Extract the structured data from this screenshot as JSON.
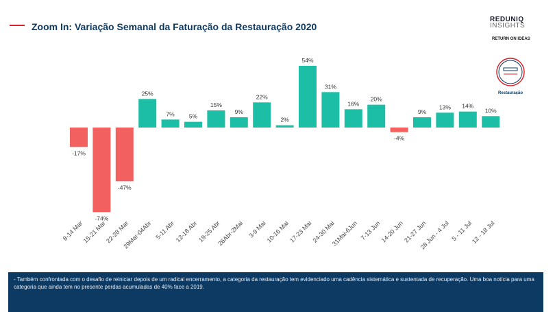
{
  "chart_data": {
    "type": "bar",
    "title": "Zoom In: Variação Semanal da Faturação da Restauração 2020",
    "categories": [
      "8-14 Mar",
      "15-21 Mar",
      "22-28 Mar",
      "29Mar-04Abr",
      "5-11 Abr",
      "12-18 Abr",
      "19-25 Abr",
      "26Abr-2Mai",
      "3-9 Mai",
      "10-16 Mai",
      "17-23 Mai",
      "24-30 Mai",
      "31Mai-6Jun",
      "7-13 Jun",
      "14-20 Jun",
      "21-27 Jun",
      "28 Jun - 4 Jul",
      "5 - 11 Jul",
      "12 - 18 Jul"
    ],
    "values": [
      -17,
      -74,
      -47,
      25,
      7,
      5,
      15,
      9,
      22,
      2,
      54,
      31,
      16,
      20,
      -4,
      9,
      13,
      14,
      10
    ],
    "value_labels": [
      "-17%",
      "-74%",
      "-47%",
      "25%",
      "7%",
      "5%",
      "15%",
      "9%",
      "22%",
      "2%",
      "54%",
      "31%",
      "16%",
      "20%",
      "-4%",
      "9%",
      "13%",
      "14%",
      "10%"
    ],
    "color_positive": "#1cbfa6",
    "color_negative": "#f2615f"
  },
  "branding": {
    "brand": "REDUNIQ",
    "brand_sub": "INSIGHTS",
    "tagline": "RETURN ON IDEAS",
    "icon_label": "Restauração"
  },
  "footer": {
    "note": "- Também confrontada com o desafio de reiniciar depois de um radical encerramento, a categoria da restauração tem evidenciado uma cadência sistemática e sustentada de recuperação. Uma boa notícia para uma categoria que ainda tem no presente perdas acumuladas de 40% face a 2019."
  }
}
